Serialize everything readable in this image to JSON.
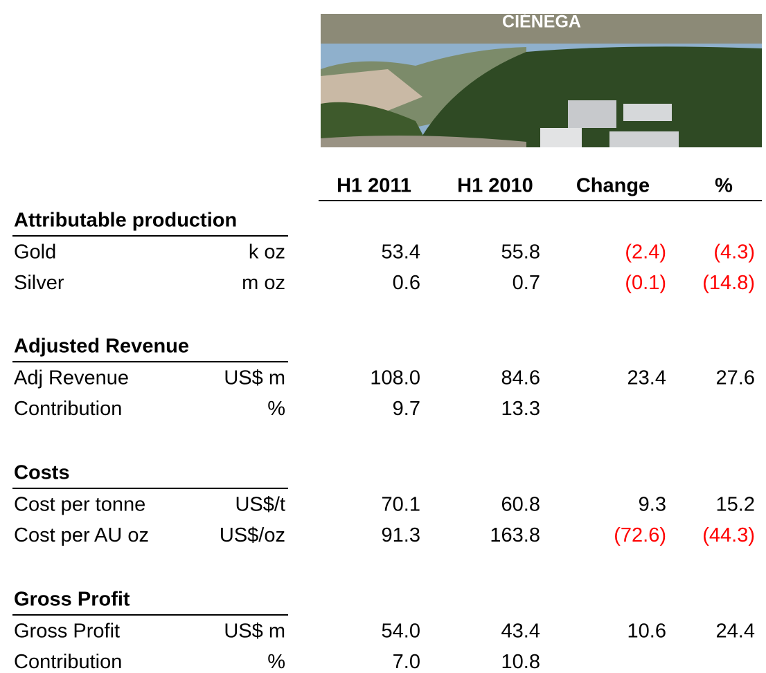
{
  "header": {
    "title": "CIÉNEGA"
  },
  "table": {
    "columns": [
      "H1 2011",
      "H1 2010",
      "Change",
      "%"
    ],
    "sections": [
      {
        "title": "Attributable production",
        "rows": [
          [
            "Gold",
            "k oz",
            "53.4",
            "55.8",
            "(2.4)",
            "(4.3)"
          ],
          [
            "Silver",
            "m oz",
            "0.6",
            "0.7",
            "(0.1)",
            "(14.8)"
          ]
        ]
      },
      {
        "title": "Adjusted Revenue",
        "rows": [
          [
            "Adj Revenue",
            "US$ m",
            "108.0",
            "84.6",
            "23.4",
            "27.6"
          ],
          [
            "Contribution",
            "%",
            "9.7",
            "13.3"
          ]
        ]
      },
      {
        "title": "Costs",
        "rows": [
          [
            "Cost per tonne",
            "US$/t",
            "70.1",
            "60.8",
            "9.3",
            "15.2"
          ],
          [
            "Cost per AU oz",
            "US$/oz",
            "91.3",
            "163.8",
            "(72.6)",
            "(44.3)"
          ]
        ]
      },
      {
        "title": "Gross Profit",
        "rows": [
          [
            "Gross Profit",
            "US$ m",
            "54.0",
            "43.4",
            "10.6",
            "24.4"
          ],
          [
            "Contribution",
            "%",
            "7.0",
            "10.8"
          ]
        ]
      }
    ]
  }
}
